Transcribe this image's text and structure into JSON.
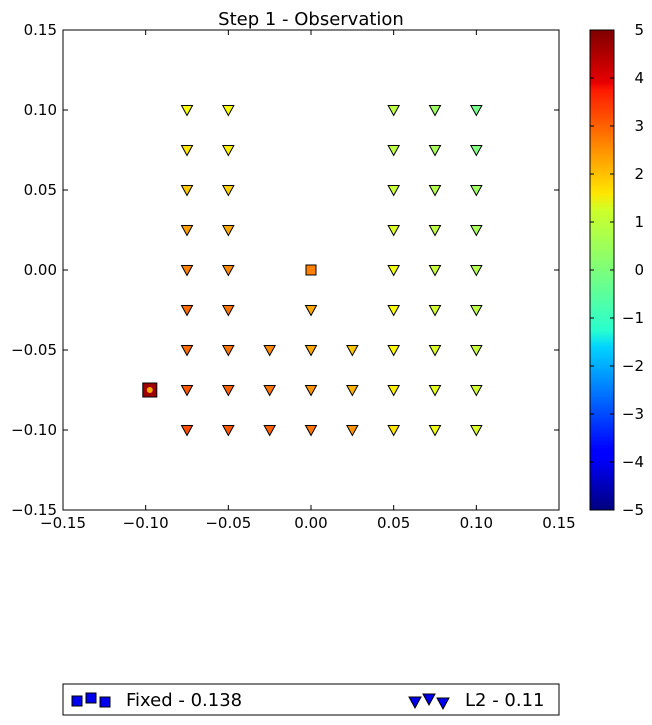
{
  "chart_data": {
    "type": "scatter",
    "title": "Step 1 - Observation",
    "xlabel": "",
    "ylabel": "",
    "xlim": [
      -0.15,
      0.15
    ],
    "ylim": [
      -0.15,
      0.15
    ],
    "xticks": [
      "−0.15",
      "−0.10",
      "−0.05",
      "0.00",
      "0.05",
      "0.10",
      "0.15"
    ],
    "yticks": [
      "0.15",
      "0.10",
      "0.05",
      "0.00",
      "−0.05",
      "−0.10",
      "−0.15"
    ],
    "grid": false,
    "colorbar": {
      "colormap": "jet",
      "range": [
        -5,
        5
      ],
      "ticks": [
        "5",
        "4",
        "3",
        "2",
        "1",
        "0",
        "−1",
        "−2",
        "−3",
        "−4",
        "−5"
      ]
    },
    "legend": {
      "placement": "bottom",
      "entries": [
        "Fixed - 0.138",
        "L2 - 0.11"
      ],
      "marker_colors": [
        "#0000ee",
        "#0000ee"
      ]
    },
    "series": [
      {
        "name": "Fixed - 0.138",
        "marker": "square",
        "points": [
          {
            "x": -0.0975,
            "y": -0.075,
            "value": 4.7
          },
          {
            "x": 0.0,
            "y": 0.0,
            "value": 2.5
          }
        ]
      },
      {
        "name": "L2 - 0.11",
        "marker": "triangle-down",
        "points": [
          {
            "x": -0.075,
            "y": 0.1,
            "value": 1.2
          },
          {
            "x": -0.05,
            "y": 0.1,
            "value": 1.2
          },
          {
            "x": -0.075,
            "y": 0.075,
            "value": 1.5
          },
          {
            "x": -0.05,
            "y": 0.075,
            "value": 1.4
          },
          {
            "x": -0.075,
            "y": 0.05,
            "value": 1.8
          },
          {
            "x": -0.05,
            "y": 0.05,
            "value": 1.7
          },
          {
            "x": -0.075,
            "y": 0.025,
            "value": 2.2
          },
          {
            "x": -0.05,
            "y": 0.025,
            "value": 2.1
          },
          {
            "x": -0.075,
            "y": 0.0,
            "value": 2.5
          },
          {
            "x": -0.05,
            "y": 0.0,
            "value": 2.4
          },
          {
            "x": -0.075,
            "y": -0.025,
            "value": 2.7
          },
          {
            "x": -0.05,
            "y": -0.025,
            "value": 2.6
          },
          {
            "x": 0.0,
            "y": -0.025,
            "value": 2.1
          },
          {
            "x": -0.075,
            "y": -0.05,
            "value": 2.7
          },
          {
            "x": -0.05,
            "y": -0.05,
            "value": 2.6
          },
          {
            "x": -0.025,
            "y": -0.05,
            "value": 2.4
          },
          {
            "x": 0.0,
            "y": -0.05,
            "value": 2.1
          },
          {
            "x": 0.025,
            "y": -0.05,
            "value": 1.8
          },
          {
            "x": -0.075,
            "y": -0.075,
            "value": 2.9
          },
          {
            "x": -0.05,
            "y": -0.075,
            "value": 2.8
          },
          {
            "x": -0.025,
            "y": -0.075,
            "value": 2.6
          },
          {
            "x": 0.0,
            "y": -0.075,
            "value": 2.3
          },
          {
            "x": 0.025,
            "y": -0.075,
            "value": 2.0
          },
          {
            "x": -0.075,
            "y": -0.1,
            "value": 3.0
          },
          {
            "x": -0.05,
            "y": -0.1,
            "value": 2.9
          },
          {
            "x": -0.025,
            "y": -0.1,
            "value": 2.8
          },
          {
            "x": 0.0,
            "y": -0.1,
            "value": 2.6
          },
          {
            "x": 0.025,
            "y": -0.1,
            "value": 2.3
          },
          {
            "x": 0.05,
            "y": 0.1,
            "value": 0.6
          },
          {
            "x": 0.075,
            "y": 0.1,
            "value": 0.3
          },
          {
            "x": 0.1,
            "y": 0.1,
            "value": -0.1
          },
          {
            "x": 0.05,
            "y": 0.075,
            "value": 0.6
          },
          {
            "x": 0.075,
            "y": 0.075,
            "value": 0.4
          },
          {
            "x": 0.1,
            "y": 0.075,
            "value": 0.0
          },
          {
            "x": 0.05,
            "y": 0.05,
            "value": 0.7
          },
          {
            "x": 0.075,
            "y": 0.05,
            "value": 0.5
          },
          {
            "x": 0.1,
            "y": 0.05,
            "value": 0.3
          },
          {
            "x": 0.05,
            "y": 0.025,
            "value": 0.9
          },
          {
            "x": 0.075,
            "y": 0.025,
            "value": 0.6
          },
          {
            "x": 0.1,
            "y": 0.025,
            "value": 0.4
          },
          {
            "x": 0.05,
            "y": 0.0,
            "value": 1.1
          },
          {
            "x": 0.075,
            "y": 0.0,
            "value": 0.7
          },
          {
            "x": 0.1,
            "y": 0.0,
            "value": 0.5
          },
          {
            "x": 0.05,
            "y": -0.025,
            "value": 1.2
          },
          {
            "x": 0.075,
            "y": -0.025,
            "value": 0.8
          },
          {
            "x": 0.1,
            "y": -0.025,
            "value": 0.6
          },
          {
            "x": 0.05,
            "y": -0.05,
            "value": 1.3
          },
          {
            "x": 0.075,
            "y": -0.05,
            "value": 0.9
          },
          {
            "x": 0.1,
            "y": -0.05,
            "value": 0.7
          },
          {
            "x": 0.05,
            "y": -0.075,
            "value": 1.4
          },
          {
            "x": 0.075,
            "y": -0.075,
            "value": 1.0
          },
          {
            "x": 0.1,
            "y": -0.075,
            "value": 0.8
          },
          {
            "x": 0.05,
            "y": -0.1,
            "value": 1.5
          },
          {
            "x": 0.075,
            "y": -0.1,
            "value": 1.1
          },
          {
            "x": 0.1,
            "y": -0.1,
            "value": 0.9
          }
        ]
      }
    ]
  }
}
